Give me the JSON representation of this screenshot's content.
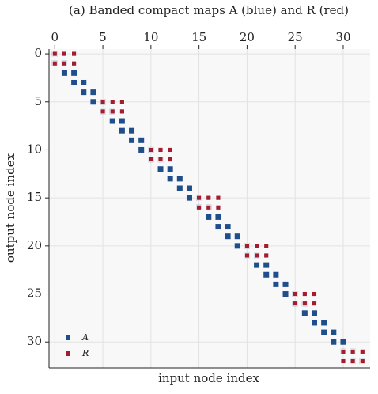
{
  "chart_data": {
    "type": "scatter",
    "title": "(a) Banded compact maps A (blue) and R (red)",
    "xlabel": "input node index",
    "ylabel": "output node index",
    "xlim": [
      -0.6,
      32.8
    ],
    "ylim": [
      -0.5,
      32.7
    ],
    "y_inverted": true,
    "x_ticks_top": true,
    "xticks": [
      0,
      5,
      10,
      15,
      20,
      25,
      30
    ],
    "yticks": [
      0,
      5,
      10,
      15,
      20,
      25,
      30
    ],
    "grid": true,
    "legend": "lower left",
    "series": [
      {
        "name": "A",
        "color": "#1f4e8c",
        "x": [
          0,
          0,
          1,
          1,
          2,
          2,
          3,
          3,
          4,
          4,
          5,
          5,
          6,
          6,
          7,
          7,
          8,
          8,
          9,
          9,
          10,
          10,
          11,
          11,
          12,
          12,
          13,
          13,
          14,
          14,
          15,
          15,
          16,
          16,
          17,
          17,
          18,
          18,
          19,
          19,
          20,
          20,
          21,
          21,
          22,
          22,
          23,
          23,
          24,
          24,
          25,
          25,
          26,
          26,
          27,
          27,
          28,
          28,
          29,
          29,
          30,
          30,
          31,
          31,
          32
        ],
        "y": [
          0,
          1,
          1,
          2,
          2,
          3,
          3,
          4,
          4,
          5,
          5,
          6,
          6,
          7,
          7,
          8,
          8,
          9,
          9,
          10,
          10,
          11,
          11,
          12,
          12,
          13,
          13,
          14,
          14,
          15,
          15,
          16,
          16,
          17,
          17,
          18,
          18,
          19,
          19,
          20,
          20,
          21,
          21,
          22,
          22,
          23,
          23,
          24,
          24,
          25,
          25,
          26,
          26,
          27,
          27,
          28,
          28,
          29,
          29,
          30,
          30,
          31,
          31,
          32,
          32
        ]
      },
      {
        "name": "R",
        "color": "#a11d2f",
        "x": [
          0,
          1,
          2,
          0,
          1,
          2,
          5,
          6,
          7,
          5,
          6,
          7,
          10,
          11,
          12,
          10,
          11,
          12,
          15,
          16,
          17,
          15,
          16,
          17,
          20,
          21,
          22,
          20,
          21,
          22,
          25,
          26,
          27,
          25,
          26,
          27,
          30,
          31,
          32,
          30,
          31,
          32
        ],
        "y": [
          0,
          0,
          0,
          1,
          1,
          1,
          5,
          5,
          5,
          6,
          6,
          6,
          10,
          10,
          10,
          11,
          11,
          11,
          15,
          15,
          15,
          16,
          16,
          16,
          20,
          20,
          20,
          21,
          21,
          21,
          25,
          25,
          25,
          26,
          26,
          26,
          31,
          31,
          31,
          32,
          32,
          32
        ]
      }
    ]
  }
}
